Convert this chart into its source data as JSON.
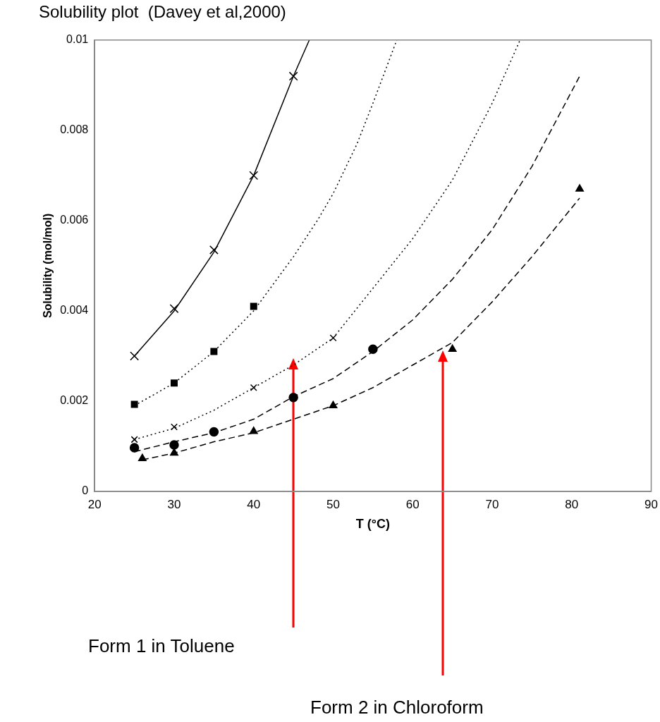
{
  "chart_data": {
    "type": "scatter",
    "title": "Solubility plot  (Davey et al,2000)",
    "xlabel": "T (°C)",
    "ylabel": "Solubility (mol/mol)",
    "xlim": [
      20,
      90
    ],
    "xticks": [
      20,
      30,
      40,
      50,
      60,
      70,
      80,
      90
    ],
    "ylim": [
      0,
      0.01
    ],
    "yticks": [
      0,
      0.002,
      0.004,
      0.006,
      0.008,
      0.01
    ],
    "grid": false,
    "legend": false,
    "series": [
      {
        "type": "scatter",
        "marker": "cross",
        "color": "#000000",
        "x": [
          25,
          30,
          35,
          40,
          45
        ],
        "values": [
          0.003,
          0.00405,
          0.00535,
          0.007,
          0.0092
        ]
      },
      {
        "type": "scatter",
        "marker": "square",
        "color": "#000000",
        "x": [
          25,
          30,
          35,
          40
        ],
        "values": [
          0.00193,
          0.0024,
          0.0031,
          0.0041
        ]
      },
      {
        "type": "scatter",
        "marker": "cross",
        "color": "#000000",
        "x": [
          25,
          30,
          40,
          50
        ],
        "values": [
          0.00115,
          0.00143,
          0.0023,
          0.0034
        ]
      },
      {
        "type": "scatter",
        "marker": "circle",
        "color": "#000000",
        "x": [
          25,
          30,
          35,
          45,
          55
        ],
        "values": [
          0.00097,
          0.00103,
          0.00132,
          0.00208,
          0.00315
        ]
      },
      {
        "type": "scatter",
        "marker": "triangle",
        "color": "#000000",
        "x": [
          26,
          30,
          40,
          50,
          65,
          81
        ],
        "values": [
          0.00073,
          0.00085,
          0.00133,
          0.0019,
          0.00315,
          0.0067
        ]
      },
      {
        "type": "line",
        "marker": "none",
        "line_style": "solid",
        "color": "#000000",
        "x": [
          25,
          30,
          35,
          40,
          45,
          47
        ],
        "values": [
          0.003,
          0.004,
          0.0053,
          0.007,
          0.0092,
          0.01
        ]
      },
      {
        "type": "line",
        "marker": "none",
        "line_style": "dotted",
        "color": "#000000",
        "x": [
          25,
          30,
          35,
          40,
          45,
          48,
          50,
          53,
          55,
          58
        ],
        "values": [
          0.0019,
          0.0024,
          0.0031,
          0.004,
          0.0052,
          0.006,
          0.0066,
          0.0077,
          0.0086,
          0.01
        ]
      },
      {
        "type": "line",
        "marker": "none",
        "line_style": "dotted",
        "color": "#000000",
        "x": [
          25,
          30,
          35,
          40,
          45,
          50,
          55,
          60,
          65,
          70,
          73.5
        ],
        "values": [
          0.00115,
          0.0014,
          0.0018,
          0.0023,
          0.0028,
          0.0034,
          0.0045,
          0.0056,
          0.0069,
          0.0086,
          0.01
        ]
      },
      {
        "type": "line",
        "marker": "none",
        "line_style": "dashed",
        "color": "#000000",
        "x": [
          25,
          30,
          35,
          40,
          45,
          50,
          55,
          60,
          65,
          70,
          75,
          81
        ],
        "values": [
          0.00088,
          0.0011,
          0.0013,
          0.0016,
          0.0021,
          0.0025,
          0.0031,
          0.0038,
          0.0047,
          0.0058,
          0.0072,
          0.0092
        ]
      },
      {
        "type": "line",
        "marker": "none",
        "line_style": "dashed",
        "color": "#000000",
        "x": [
          26,
          30,
          35,
          40,
          45,
          50,
          55,
          60,
          65,
          70,
          75,
          81
        ],
        "values": [
          0.0007,
          0.00085,
          0.0011,
          0.0013,
          0.0016,
          0.0019,
          0.0023,
          0.0028,
          0.0033,
          0.0042,
          0.0052,
          0.0065
        ]
      }
    ],
    "annotations": [
      "Form 1 in Toluene",
      "Form 2 in Chloroform"
    ]
  }
}
